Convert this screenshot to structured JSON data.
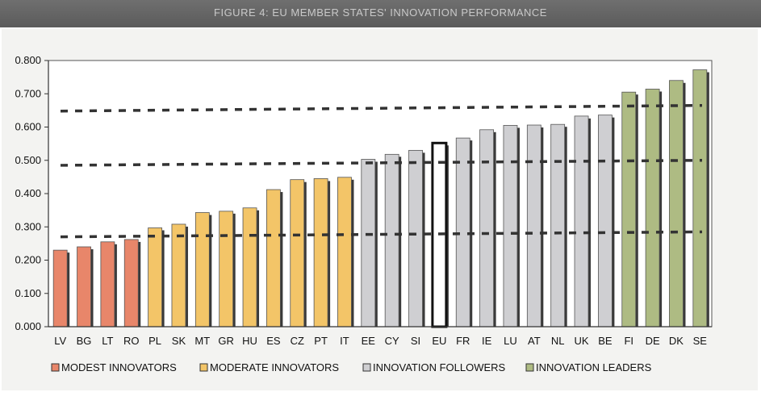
{
  "header": {
    "title": "FIGURE 4: EU MEMBER STATES' INNOVATION PERFORMANCE"
  },
  "chart_data": {
    "type": "bar",
    "title": "FIGURE 4: EU MEMBER STATES' INNOVATION PERFORMANCE",
    "categories": [
      "LV",
      "BG",
      "LT",
      "RO",
      "PL",
      "SK",
      "MT",
      "GR",
      "HU",
      "ES",
      "CZ",
      "PT",
      "IT",
      "EE",
      "CY",
      "SI",
      "EU",
      "FR",
      "IE",
      "LU",
      "AT",
      "NL",
      "UK",
      "BE",
      "FI",
      "DE",
      "DK",
      "SE"
    ],
    "values": [
      0.23,
      0.24,
      0.255,
      0.262,
      0.297,
      0.308,
      0.343,
      0.347,
      0.357,
      0.412,
      0.442,
      0.445,
      0.449,
      0.503,
      0.518,
      0.53,
      0.552,
      0.567,
      0.592,
      0.605,
      0.606,
      0.608,
      0.633,
      0.636,
      0.705,
      0.714,
      0.74,
      0.772
    ],
    "groups": [
      "modest",
      "modest",
      "modest",
      "modest",
      "moderate",
      "moderate",
      "moderate",
      "moderate",
      "moderate",
      "moderate",
      "moderate",
      "moderate",
      "moderate",
      "followers",
      "followers",
      "followers",
      "eu",
      "followers",
      "followers",
      "followers",
      "followers",
      "followers",
      "followers",
      "followers",
      "leaders",
      "leaders",
      "leaders",
      "leaders"
    ],
    "ylim": [
      0,
      0.8
    ],
    "yticks": [
      "0.000",
      "0.100",
      "0.200",
      "0.300",
      "0.400",
      "0.500",
      "0.600",
      "0.700",
      "0.800"
    ],
    "reference_lines": [
      {
        "start": 0.27,
        "end": 0.285
      },
      {
        "start": 0.485,
        "end": 0.5
      },
      {
        "start": 0.648,
        "end": 0.665
      }
    ],
    "legend": [
      {
        "label": "MODEST INNOVATORS",
        "key": "modest"
      },
      {
        "label": "MODERATE INNOVATORS",
        "key": "moderate"
      },
      {
        "label": "INNOVATION FOLLOWERS",
        "key": "followers"
      },
      {
        "label": "INNOVATION LEADERS",
        "key": "leaders"
      }
    ],
    "legend_position": "bottom",
    "grid": false,
    "colors": {
      "modest": "#e8866a",
      "moderate": "#f3c568",
      "followers": "#cfcfd2",
      "leaders": "#aebb83",
      "eu": "#ffffff",
      "shadow": "#3a3a3a",
      "reference": "#333333"
    }
  }
}
